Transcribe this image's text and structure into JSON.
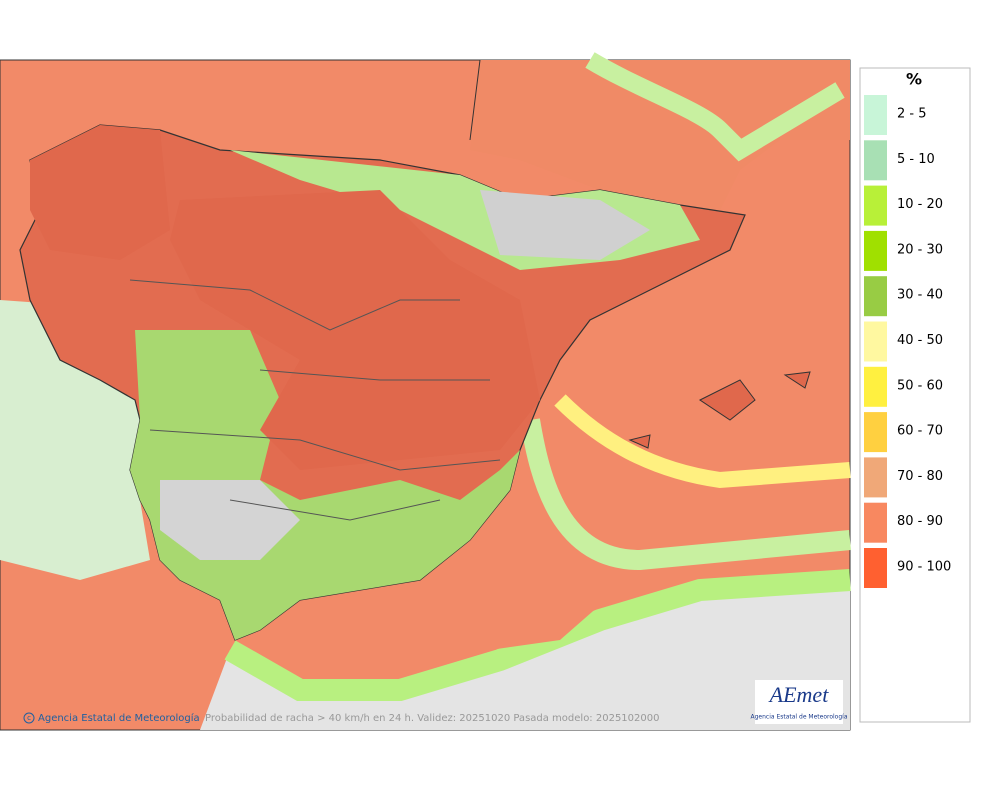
{
  "legend": {
    "title": "%",
    "items": [
      {
        "label": "2 - 5",
        "color": "#c8f5d8"
      },
      {
        "label": "5 - 10",
        "color": "#a8e0b4"
      },
      {
        "label": "10 - 20",
        "color": "#b8f038"
      },
      {
        "label": "20 - 30",
        "color": "#a0e000"
      },
      {
        "label": "30 - 40",
        "color": "#98cc44"
      },
      {
        "label": "40 - 50",
        "color": "#fff8a0"
      },
      {
        "label": "50 - 60",
        "color": "#fff040"
      },
      {
        "label": "60 - 70",
        "color": "#ffd040"
      },
      {
        "label": "70 - 80",
        "color": "#f0a878"
      },
      {
        "label": "80 - 90",
        "color": "#f88860"
      },
      {
        "label": "90 - 100",
        "color": "#ff6030"
      }
    ]
  },
  "footer": {
    "credit": "Agencia Estatal de Meteorología",
    "caption": "Probabilidad de racha > 40 km/h en 24 h. Validez: 20251020 Pasada modelo: 2025102000"
  },
  "logo": {
    "name": "AEmet",
    "subtitle": "Agencia Estatal de Meteorología"
  }
}
